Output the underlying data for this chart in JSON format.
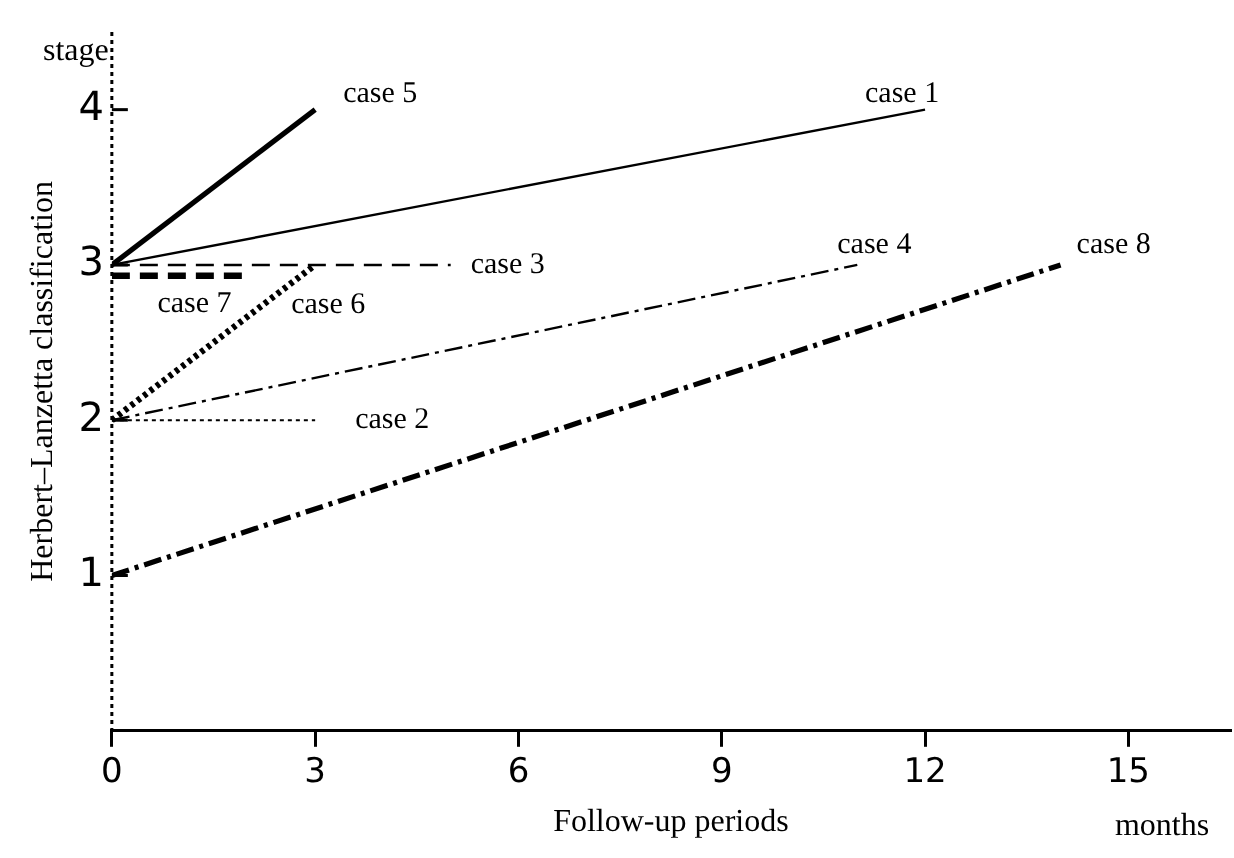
{
  "chart_data": {
    "type": "line",
    "xlabel": "Follow-up periods",
    "ylabel": "Herbert–Lanzetta classification",
    "xlim": [
      0,
      16.5
    ],
    "xticks": [
      0,
      3,
      6,
      9,
      12,
      15
    ],
    "ylim": [
      0,
      4.5
    ],
    "yticks": [
      1,
      2,
      3,
      4
    ],
    "grid": false,
    "legend": false,
    "marker": "none",
    "series": [
      {
        "name": "case 1",
        "color": "#000000",
        "x": [
          0,
          12
        ],
        "values": [
          3,
          4
        ],
        "line_style": "solid"
      },
      {
        "name": "case 5",
        "color": "#000000",
        "x": [
          0,
          3
        ],
        "values": [
          3,
          4
        ],
        "line_style": "solid"
      },
      {
        "name": "case 3",
        "color": "#000000",
        "x": [
          0,
          5
        ],
        "values": [
          3,
          3
        ],
        "line_style": "dashed"
      },
      {
        "name": "case 7",
        "color": "#000000",
        "x": [
          0,
          2
        ],
        "values": [
          2.93,
          2.93
        ],
        "line_style": "dashed"
      },
      {
        "name": "case 6",
        "color": "#000000",
        "x": [
          0,
          3
        ],
        "values": [
          2,
          3
        ],
        "line_style": "dotted"
      },
      {
        "name": "case 4",
        "color": "#000000",
        "x": [
          0,
          11
        ],
        "values": [
          2,
          3
        ],
        "line_style": "dashdot"
      },
      {
        "name": "case 2",
        "color": "#000000",
        "x": [
          0,
          3
        ],
        "values": [
          2,
          2
        ],
        "line_style": "dotted"
      },
      {
        "name": "case 8",
        "color": "#000000",
        "x": [
          0,
          14
        ],
        "values": [
          1,
          3
        ],
        "line_style": "dashdot"
      }
    ],
    "ref_lines": [
      {
        "axis": "x",
        "value": 0,
        "line_style": "dotted",
        "color": "#000000"
      }
    ],
    "annotations": [
      "stage",
      "months"
    ]
  }
}
